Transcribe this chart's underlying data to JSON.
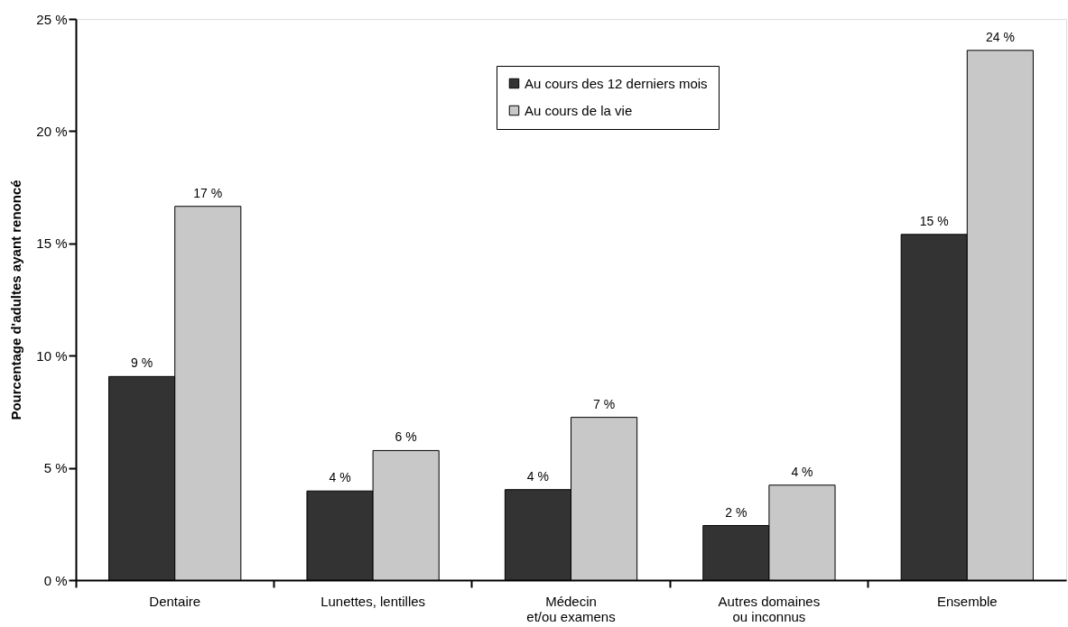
{
  "chart_data": {
    "type": "bar",
    "ylabel": "Pourcentage d'adultes ayant renoncé",
    "categories": [
      "Dentaire",
      "Lunettes, lentilles",
      "Médecin\net/ou examens",
      "Autres domaines\nou inconnus",
      "Ensemble"
    ],
    "series": [
      {
        "name": "Au cours des 12 derniers mois",
        "color": "#333333",
        "values": [
          9.07,
          3.97,
          4.03,
          2.43,
          15.4
        ],
        "value_labels": [
          "9 %",
          "4 %",
          "4 %",
          "2 %",
          "15 %"
        ]
      },
      {
        "name": "Au cours de la vie",
        "color": "#c8c8c8",
        "values": [
          16.65,
          5.77,
          7.25,
          4.23,
          23.6
        ],
        "value_labels": [
          "17 %",
          "6 %",
          "7 %",
          "4 %",
          "24 %"
        ]
      }
    ],
    "ylim": [
      0,
      25
    ],
    "yticks": [
      {
        "value": 0,
        "label": "0 %"
      },
      {
        "value": 5,
        "label": "5 %"
      },
      {
        "value": 10,
        "label": "10 %"
      },
      {
        "value": 15,
        "label": "15 %"
      },
      {
        "value": 20,
        "label": "20 %"
      },
      {
        "value": 25,
        "label": "25 %"
      }
    ],
    "grid": false,
    "legend": "top right"
  }
}
